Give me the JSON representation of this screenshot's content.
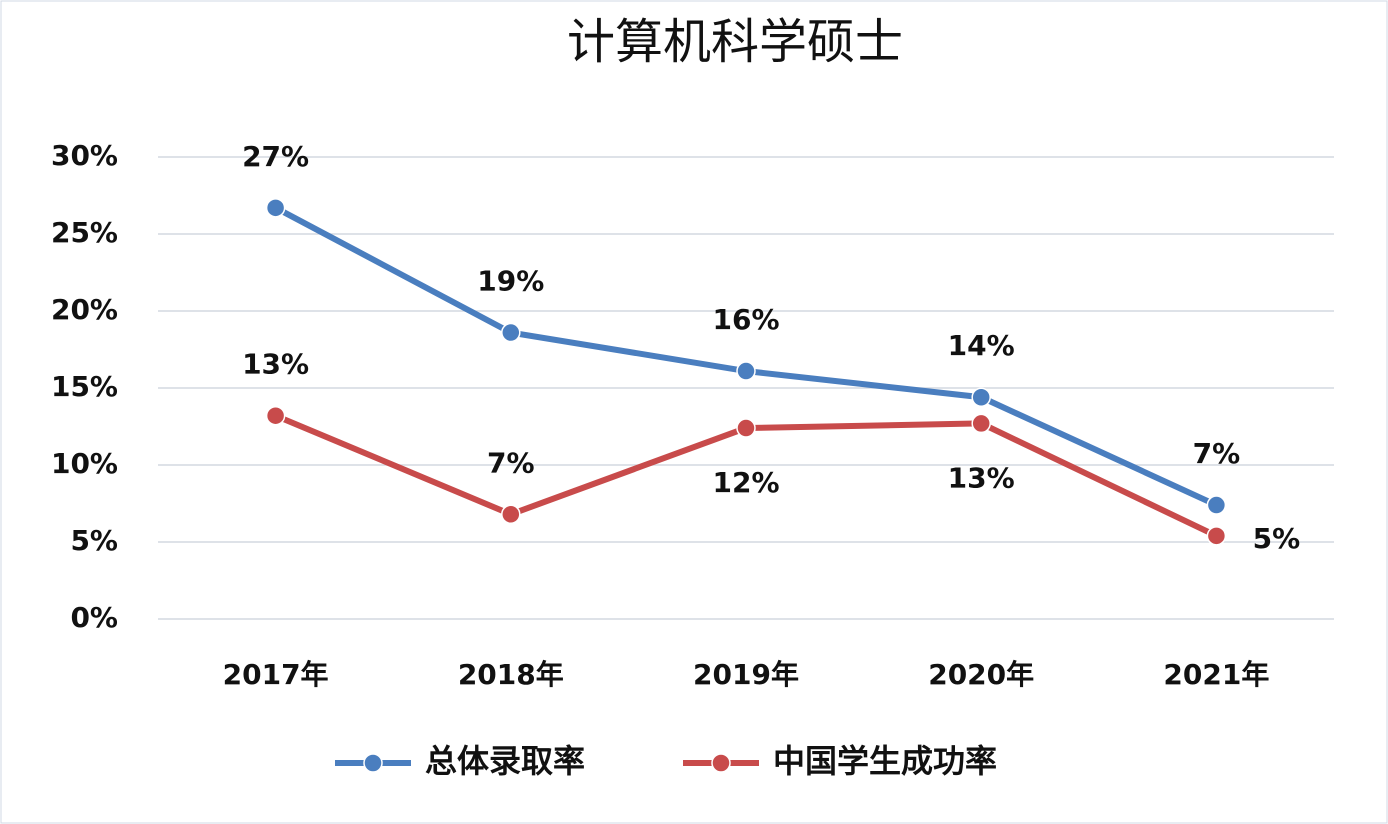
{
  "chart_data": {
    "type": "line",
    "title": "计算机科学硕士",
    "categories": [
      "2017年",
      "2018年",
      "2019年",
      "2020年",
      "2021年"
    ],
    "series": [
      {
        "name": "总体录取率",
        "color": "#4a7ebf",
        "values": [
          26.7,
          18.6,
          16.1,
          14.4,
          7.4
        ],
        "value_labels": [
          "27%",
          "19%",
          "16%",
          "14%",
          "7%"
        ]
      },
      {
        "name": "中国学生成功率",
        "color": "#c84b4b",
        "values": [
          13.2,
          6.8,
          12.4,
          12.7,
          5.4
        ],
        "value_labels": [
          "13%",
          "7%",
          "12%",
          "13%",
          "5%"
        ]
      }
    ],
    "ylim": [
      0,
      30
    ],
    "yticks": [
      {
        "value": 0,
        "label": "0%"
      },
      {
        "value": 5,
        "label": "5%"
      },
      {
        "value": 10,
        "label": "10%"
      },
      {
        "value": 15,
        "label": "15%"
      },
      {
        "value": 20,
        "label": "20%"
      },
      {
        "value": 25,
        "label": "25%"
      },
      {
        "value": 30,
        "label": "30%"
      }
    ],
    "grid": true,
    "legend": "bottom"
  }
}
